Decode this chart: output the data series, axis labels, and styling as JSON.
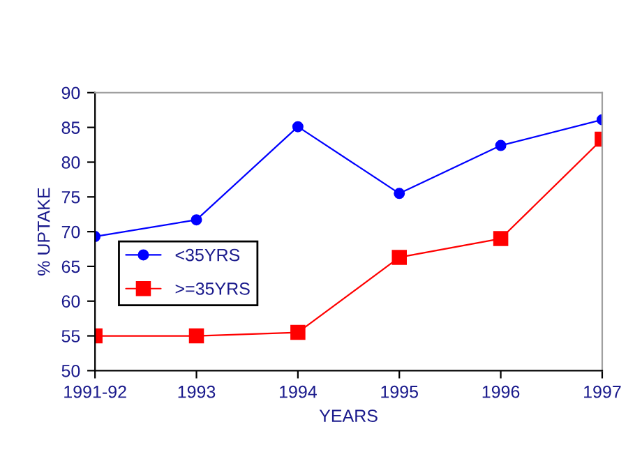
{
  "chart_data": {
    "type": "line",
    "xlabel": "YEARS",
    "ylabel": "% UPTAKE",
    "categories": [
      "1991-92",
      "1993",
      "1994",
      "1995",
      "1996",
      "1997"
    ],
    "series": [
      {
        "name": "<35YRS",
        "color": "#0000ff",
        "marker": "circle",
        "values": [
          69.3,
          71.7,
          85.1,
          75.5,
          82.4,
          86.1
        ]
      },
      {
        "name": ">=35YRS",
        "color": "#ff0000",
        "marker": "square",
        "values": [
          55.0,
          55.0,
          55.5,
          66.3,
          69.0,
          83.3
        ]
      }
    ],
    "ylim": [
      50,
      90
    ],
    "yticks": [
      50,
      55,
      60,
      65,
      70,
      75,
      80,
      85,
      90
    ],
    "grid": false,
    "legend": "left",
    "line_style": "solid"
  }
}
